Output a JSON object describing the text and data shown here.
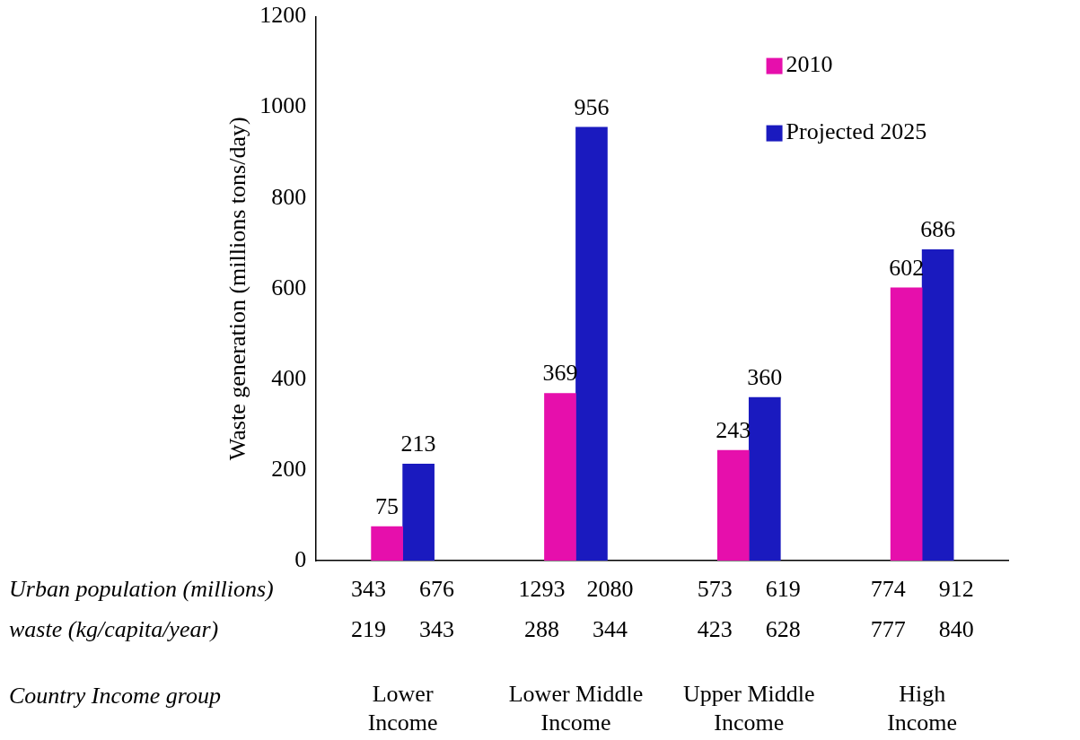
{
  "chart_data": {
    "type": "bar",
    "ylabel": "Waste generation (millions tons/day)",
    "categories": [
      "Lower Income",
      "Lower Middle Income",
      "Upper Middle Income",
      "High Income"
    ],
    "series": [
      {
        "name": "2010",
        "color": "#e60fac",
        "values": [
          75,
          369,
          243,
          602
        ]
      },
      {
        "name": "Projected 2025",
        "color": "#1a1abf",
        "values": [
          213,
          956,
          360,
          686
        ]
      }
    ],
    "ylim": [
      0,
      1200
    ],
    "yticks": [
      0,
      200,
      400,
      600,
      800,
      1000,
      1200
    ],
    "grid": false,
    "legend": "top right",
    "data_labels": true,
    "annotations": [
      "Urban population (millions)",
      "343",
      "676",
      "1293",
      "2080",
      "573",
      "619",
      "774",
      "912",
      "waste (kg/capita/year)",
      "219",
      "343",
      "288",
      "344",
      "423",
      "628",
      "777",
      "840",
      "Country Income group"
    ]
  }
}
